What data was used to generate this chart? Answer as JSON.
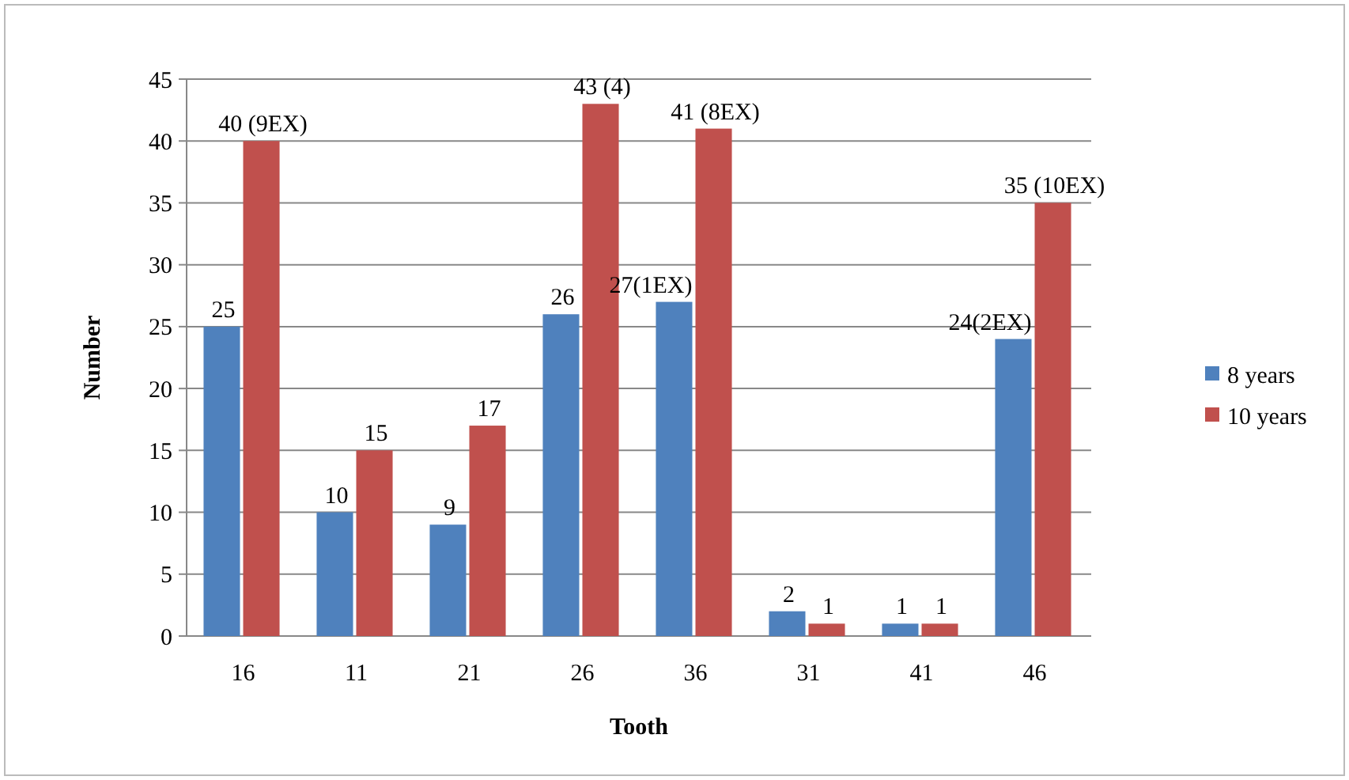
{
  "chart_data": {
    "type": "bar",
    "xlabel": "Tooth",
    "ylabel": "Number",
    "categories": [
      "16",
      "11",
      "21",
      "26",
      "36",
      "31",
      "41",
      "46"
    ],
    "series": [
      {
        "name": "8 years",
        "color": "#4f81bd",
        "values": [
          25,
          10,
          9,
          26,
          27,
          2,
          1,
          24
        ],
        "value_labels": [
          "25",
          "10",
          "9",
          "26",
          "27(1EX)",
          "2",
          "1",
          "24(2EX)"
        ]
      },
      {
        "name": "10 years",
        "color": "#c0504d",
        "values": [
          40,
          15,
          17,
          43,
          41,
          1,
          1,
          35
        ],
        "value_labels": [
          "40 (9EX)",
          "15",
          "17",
          "43 (4)",
          "41 (8EX)",
          "1",
          "1",
          "35 (10EX)"
        ]
      }
    ],
    "ylim": [
      0,
      45
    ],
    "yticks": [
      0,
      5,
      10,
      15,
      20,
      25,
      30,
      35,
      40,
      45
    ],
    "grid": "y",
    "legend": "right"
  }
}
